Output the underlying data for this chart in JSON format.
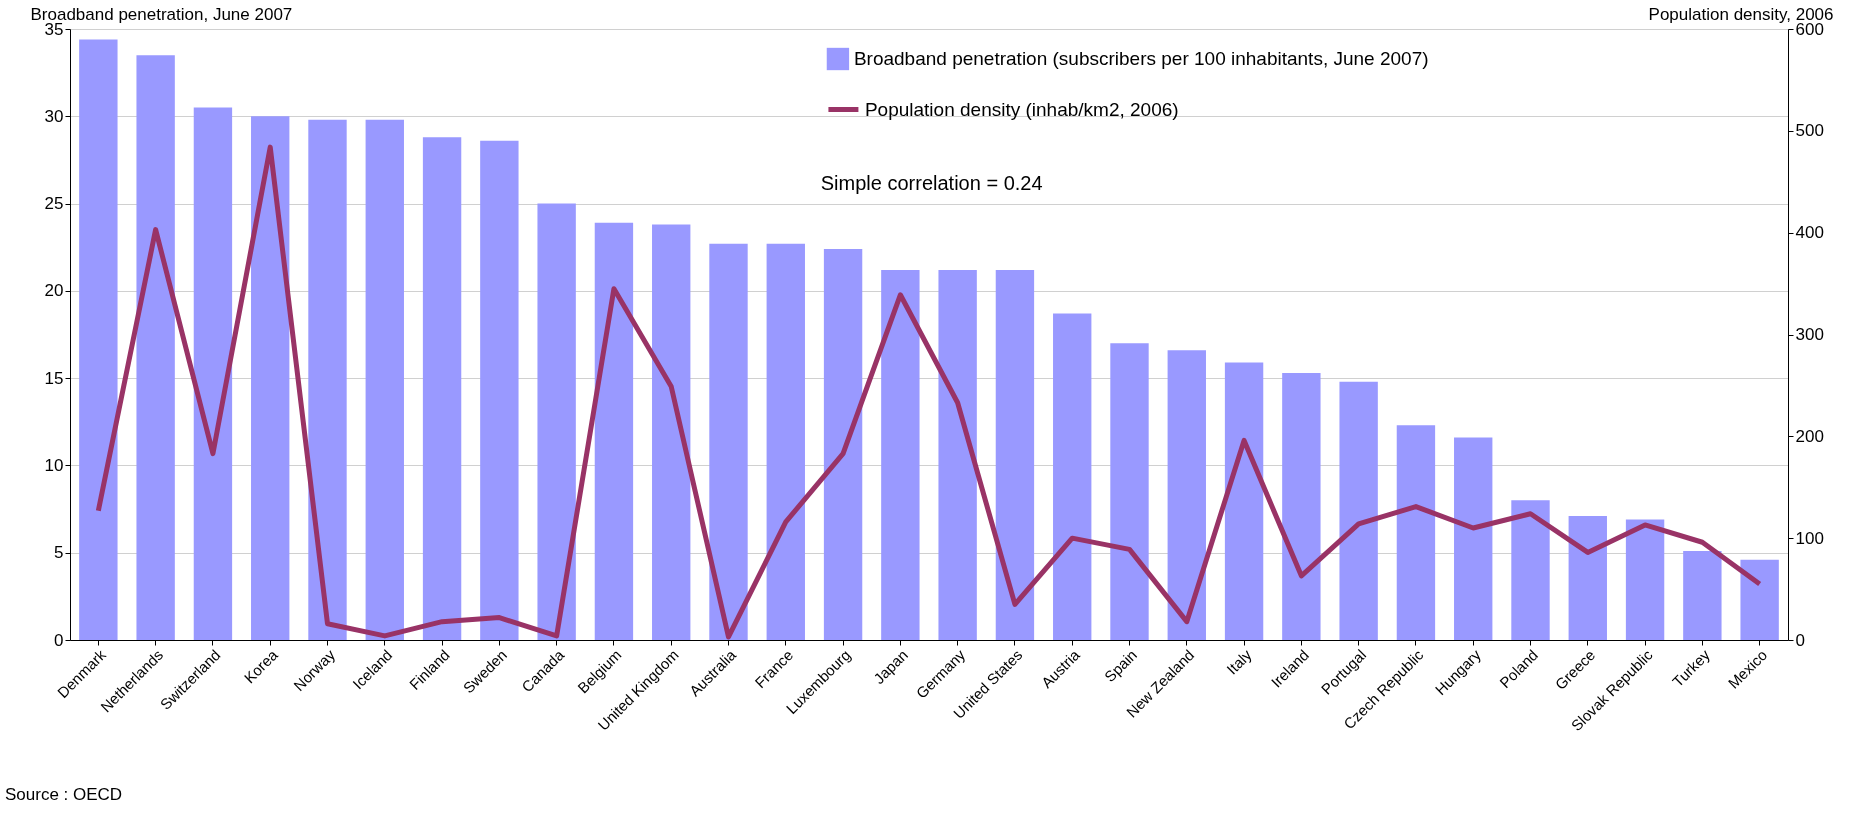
{
  "chart_data": {
    "type": "bar",
    "ylabel": "Broadband penetration, June 2007",
    "y2label": "Population density, 2006",
    "categories": [
      "Denmark",
      "Netherlands",
      "Switzerland",
      "Korea",
      "Norway",
      "Iceland",
      "Finland",
      "Sweden",
      "Canada",
      "Belgium",
      "United Kingdom",
      "Australia",
      "France",
      "Luxembourg",
      "Japan",
      "Germany",
      "United States",
      "Austria",
      "Spain",
      "New Zealand",
      "Italy",
      "Ireland",
      "Portugal",
      "Czech Republic",
      "Hungary",
      "Poland",
      "Greece",
      "Slovak Republic",
      "Turkey",
      "Mexico"
    ],
    "series": [
      {
        "name": "Broadband penetration (subscribers per 100 inhabitants, June 2007)",
        "color": "#9999ff",
        "values": [
          34.4,
          33.5,
          30.5,
          30.0,
          29.8,
          29.8,
          28.8,
          28.6,
          25.0,
          23.9,
          23.8,
          22.7,
          22.7,
          22.4,
          21.2,
          21.2,
          21.2,
          18.7,
          17.0,
          16.6,
          15.9,
          15.3,
          14.8,
          12.3,
          11.6,
          8.0,
          7.1,
          6.9,
          5.1,
          4.6
        ]
      },
      {
        "name": "Population density (inhab/km2, 2006)",
        "type": "line",
        "axis": "y2",
        "color": "#993366",
        "values": [
          127,
          403,
          183,
          484,
          16,
          4,
          18,
          22,
          4,
          345,
          249,
          3,
          116,
          183,
          339,
          233,
          35,
          100,
          89,
          18,
          196,
          63,
          114,
          131,
          110,
          124,
          86,
          113,
          96,
          55
        ]
      }
    ],
    "ylim": [
      0,
      35
    ],
    "yticks": [
      0,
      5,
      10,
      15,
      20,
      25,
      30,
      35
    ],
    "y2lim": [
      0,
      600
    ],
    "y2ticks": [
      0,
      100,
      200,
      300,
      400,
      500,
      600
    ],
    "grid": "y",
    "legend": "top right",
    "marker": "none",
    "line_style": "solid",
    "annotations": [
      "Simple correlation = 0.24",
      "Source : OECD"
    ]
  }
}
